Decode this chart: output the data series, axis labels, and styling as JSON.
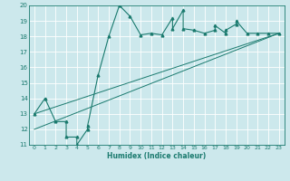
{
  "title": "",
  "xlabel": "Humidex (Indice chaleur)",
  "bg_color": "#cce8ec",
  "grid_color": "#ffffff",
  "line_color": "#1a7a6e",
  "xlim": [
    -0.5,
    23.5
  ],
  "ylim": [
    11,
    20
  ],
  "xticks": [
    0,
    1,
    2,
    3,
    4,
    5,
    6,
    7,
    8,
    9,
    10,
    11,
    12,
    13,
    14,
    15,
    16,
    17,
    18,
    19,
    20,
    21,
    22,
    23
  ],
  "yticks": [
    11,
    12,
    13,
    14,
    15,
    16,
    17,
    18,
    19,
    20
  ],
  "main_line_x": [
    0,
    1,
    2,
    3,
    3,
    4,
    4,
    5,
    5,
    6,
    7,
    8,
    9,
    10,
    11,
    12,
    13,
    13,
    14,
    14,
    15,
    16,
    17,
    17,
    18,
    18,
    19,
    19,
    20,
    21,
    22,
    23
  ],
  "main_line_y": [
    13,
    14,
    12.5,
    12.5,
    11.5,
    11.5,
    11,
    12,
    12.2,
    15.5,
    18,
    20,
    19.3,
    18.1,
    18.2,
    18.1,
    19.2,
    18.5,
    19.7,
    18.5,
    18.4,
    18.2,
    18.4,
    18.7,
    18.2,
    18.4,
    18.8,
    19.0,
    18.2,
    18.2,
    18.2,
    18.2
  ],
  "line1_x": [
    0,
    23
  ],
  "line1_y": [
    13,
    18.2
  ],
  "line2_x": [
    0,
    23
  ],
  "line2_y": [
    12,
    18.2
  ]
}
